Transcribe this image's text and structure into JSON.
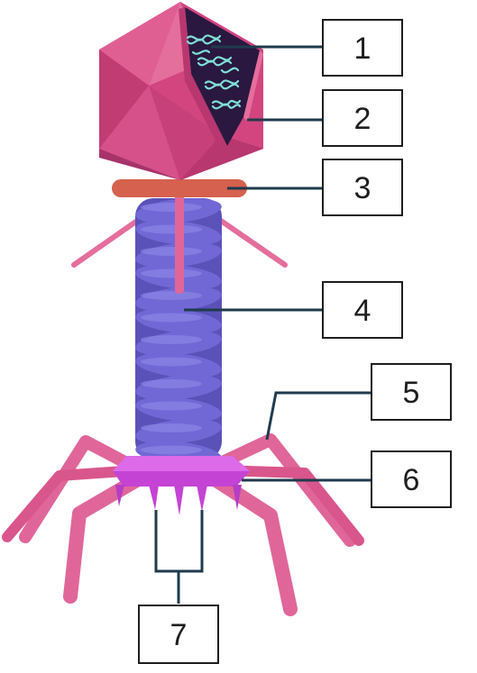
{
  "labels": [
    {
      "id": "1",
      "text": "1"
    },
    {
      "id": "2",
      "text": "2"
    },
    {
      "id": "3",
      "text": "3"
    },
    {
      "id": "4",
      "text": "4"
    },
    {
      "id": "5",
      "text": "5"
    },
    {
      "id": "6",
      "text": "6"
    },
    {
      "id": "7",
      "text": "7"
    }
  ],
  "colors": {
    "capsid": "#d2457f",
    "capsid_dark": "#a8326a",
    "capsid_light": "#e46e9c",
    "dna": "#7fe0d6",
    "collar": "#d6614e",
    "sheath": "#7168d6",
    "sheath_dark": "#5a52b8",
    "baseplate": "#d14fe0",
    "fibers": "#e06699",
    "leader": "#1f3b4d"
  }
}
